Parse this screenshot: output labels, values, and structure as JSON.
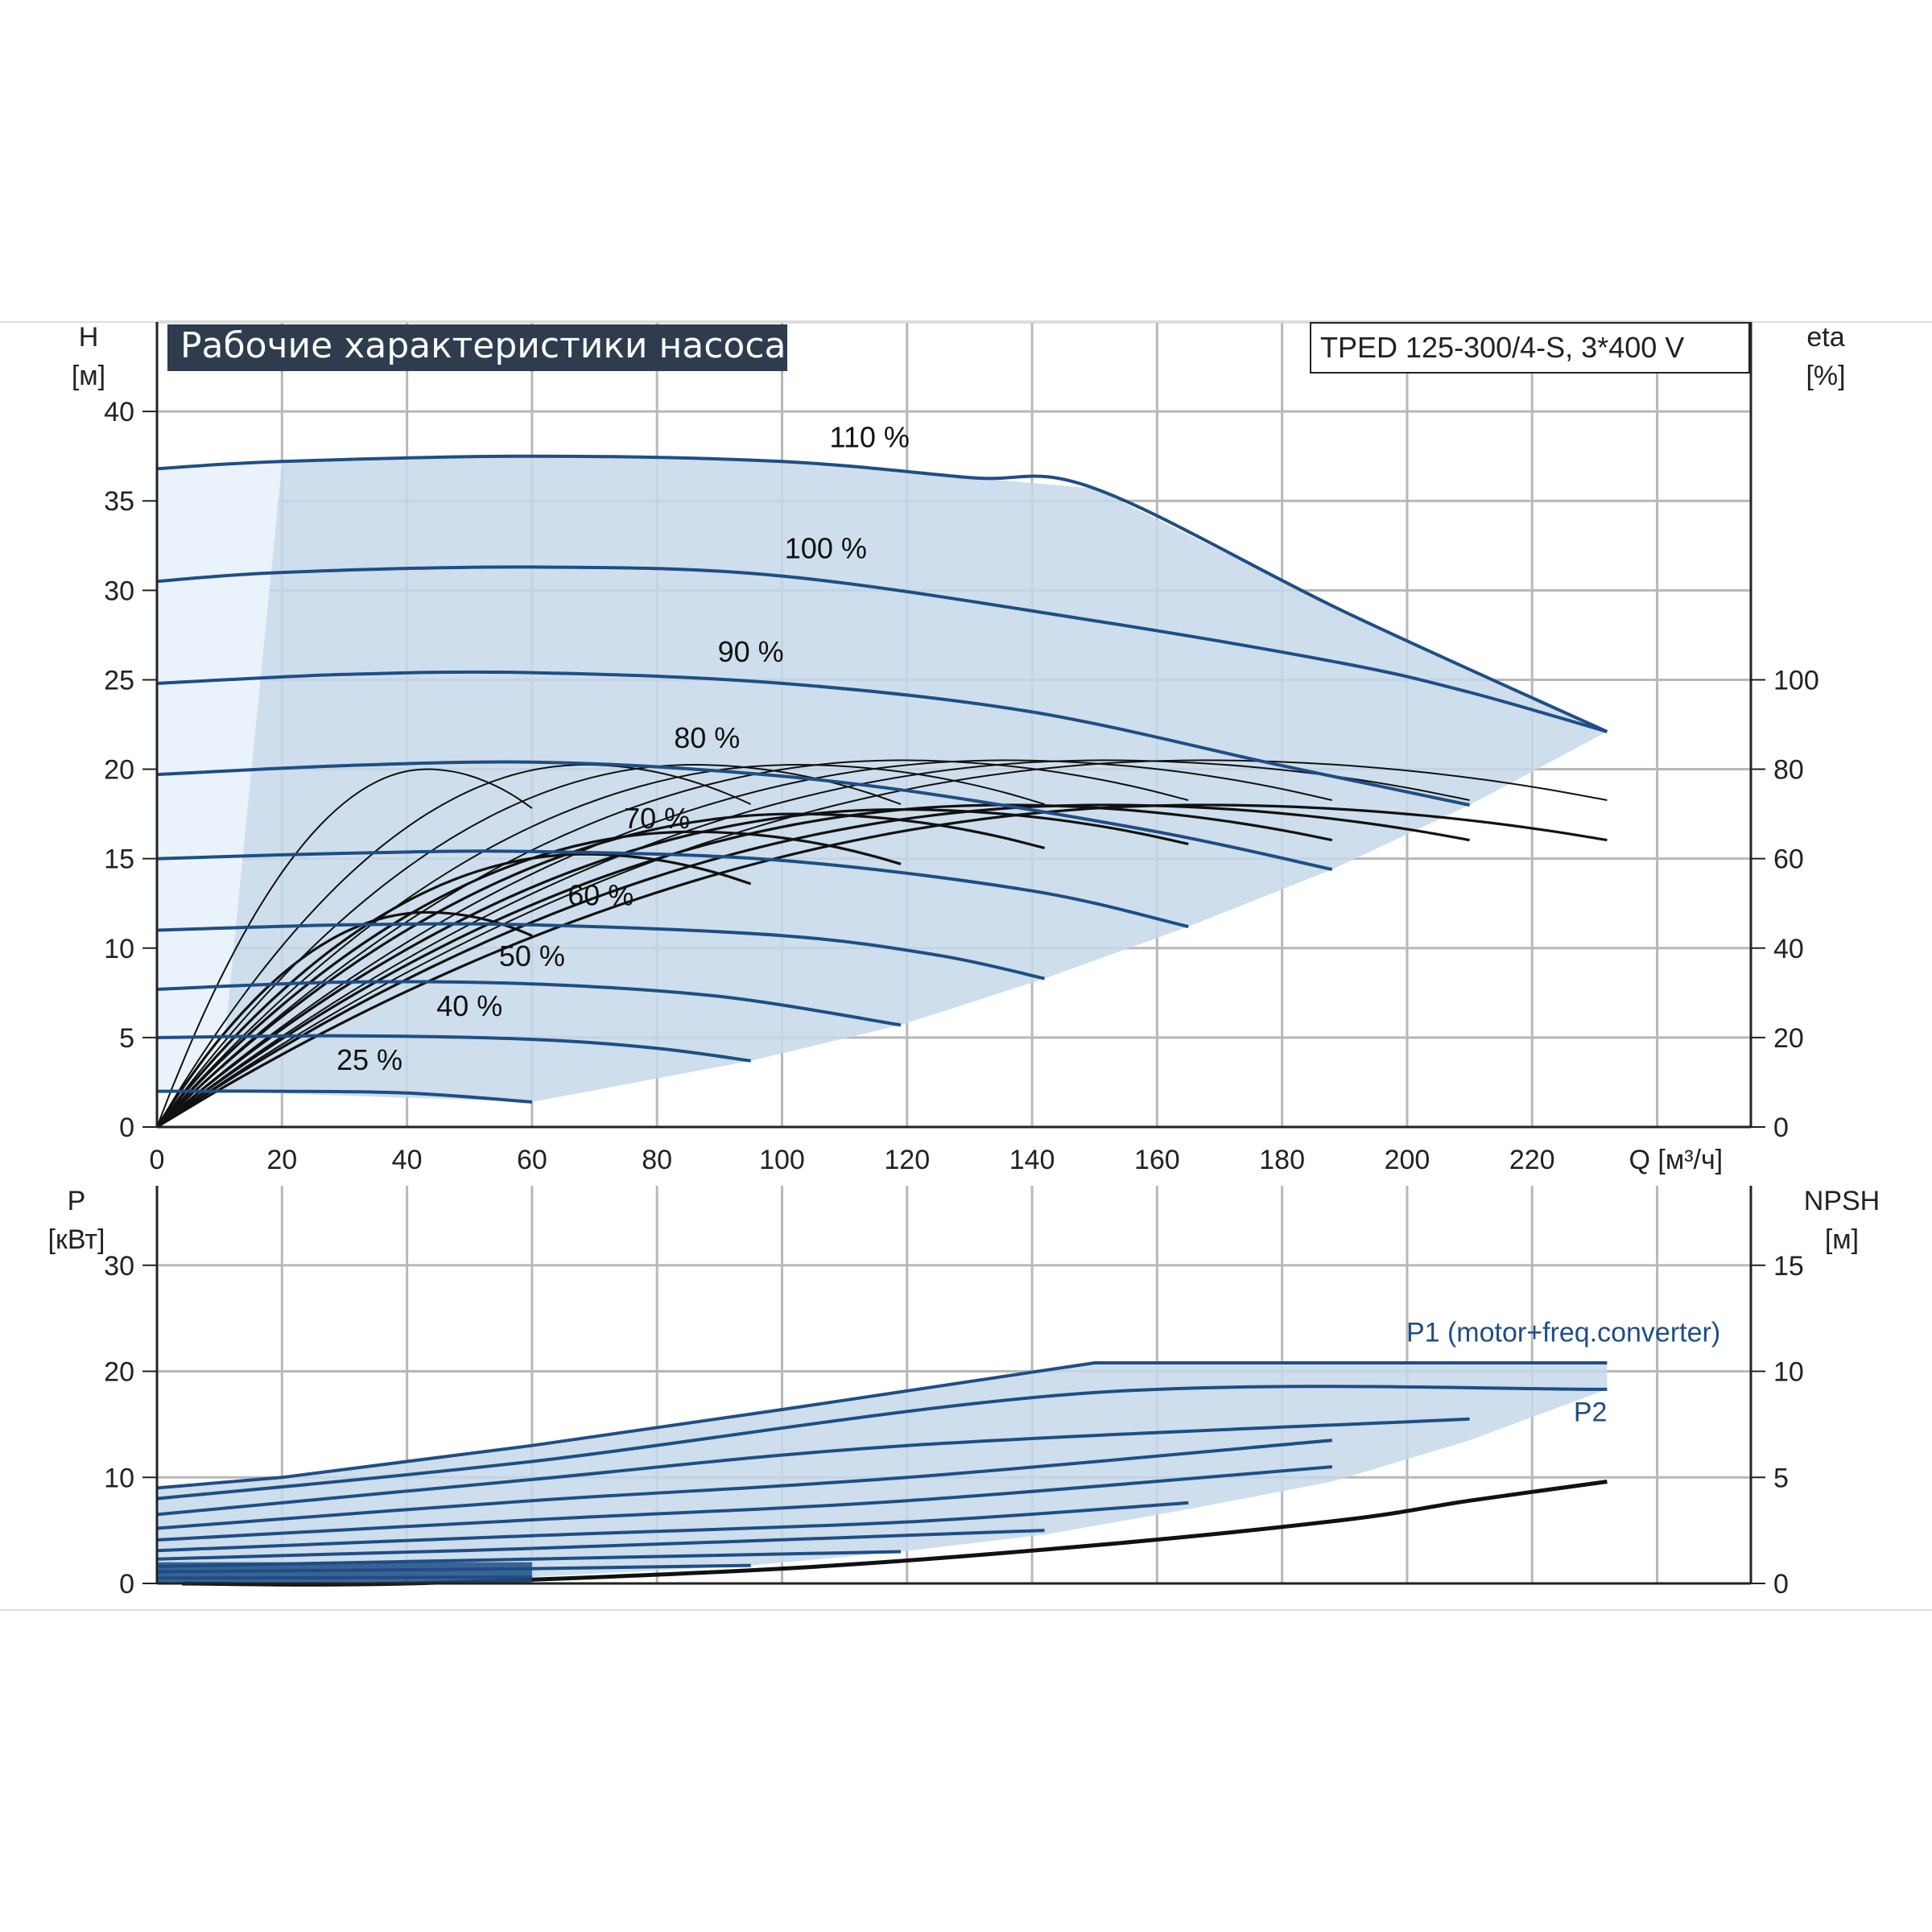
{
  "colors": {
    "curve_blue": "#1f4e85",
    "area_fill": "#c5d8ea",
    "area_light": "#eaf3fb",
    "grid": "#b8b8b8",
    "title_bg": "#2e3c4e",
    "title_fg": "#ffffff",
    "black": "#111111"
  },
  "title": "Рабочие характеристики насоса",
  "model": "TPED 125-300/4-S, 3*400 V",
  "chart_data": [
    {
      "type": "line",
      "name": "head",
      "y_label": [
        "H",
        "[м]"
      ],
      "y2_label": [
        "eta",
        "[%]"
      ],
      "x_label": "Q [м³/ч]",
      "xlim": [
        0,
        255
      ],
      "ylim": [
        0,
        40
      ],
      "y_ticks": [
        0,
        5,
        10,
        15,
        20,
        25,
        30,
        35,
        40
      ],
      "y_top_grid": 45,
      "x_ticks": [
        0,
        20,
        40,
        60,
        80,
        100,
        120,
        140,
        160,
        180,
        200,
        220
      ],
      "y2_ticks": [
        0,
        20,
        40,
        60,
        80,
        100
      ],
      "grid": true,
      "head_curves": [
        {
          "label": "110 %",
          "label_at": [
            114,
            38
          ],
          "points": [
            [
              0,
              36.8
            ],
            [
              20,
              37.2
            ],
            [
              60,
              37.5
            ],
            [
              100,
              37.2
            ],
            [
              130,
              36.3
            ],
            [
              150,
              35.7
            ],
            [
              190,
              28.8
            ],
            [
              232,
              22.1
            ]
          ]
        },
        {
          "label": "100 %",
          "label_at": [
            107,
            31.8
          ],
          "points": [
            [
              0,
              30.5
            ],
            [
              20,
              31
            ],
            [
              60,
              31.3
            ],
            [
              100,
              30.8
            ],
            [
              150,
              28.3
            ],
            [
              190,
              25.9
            ],
            [
              210,
              24.3
            ],
            [
              232,
              22.1
            ]
          ]
        },
        {
          "label": "90 %",
          "label_at": [
            95,
            26
          ],
          "points": [
            [
              0,
              24.8
            ],
            [
              30,
              25.3
            ],
            [
              60,
              25.4
            ],
            [
              100,
              24.8
            ],
            [
              140,
              23.2
            ],
            [
              180,
              20.2
            ],
            [
              210,
              18
            ]
          ]
        },
        {
          "label": "80 %",
          "label_at": [
            88,
            21.2
          ],
          "points": [
            [
              0,
              19.7
            ],
            [
              30,
              20.2
            ],
            [
              60,
              20.4
            ],
            [
              90,
              19.9
            ],
            [
              120,
              18.8
            ],
            [
              160,
              16.5
            ],
            [
              188,
              14.4
            ]
          ]
        },
        {
          "label": "70 %",
          "label_at": [
            80,
            16.7
          ],
          "points": [
            [
              0,
              15
            ],
            [
              30,
              15.3
            ],
            [
              60,
              15.4
            ],
            [
              100,
              14.9
            ],
            [
              140,
              13.2
            ],
            [
              165,
              11.2
            ]
          ]
        },
        {
          "label": "60 %",
          "label_at": [
            71,
            12.4
          ],
          "points": [
            [
              0,
              11
            ],
            [
              30,
              11.3
            ],
            [
              60,
              11.3
            ],
            [
              100,
              10.7
            ],
            [
              125,
              9.6
            ],
            [
              142,
              8.3
            ]
          ]
        },
        {
          "label": "50 %",
          "label_at": [
            60,
            9
          ],
          "points": [
            [
              0,
              7.7
            ],
            [
              30,
              8.1
            ],
            [
              60,
              8
            ],
            [
              90,
              7.3
            ],
            [
              119,
              5.7
            ]
          ]
        },
        {
          "label": "40 %",
          "label_at": [
            50,
            6.2
          ],
          "points": [
            [
              0,
              5
            ],
            [
              30,
              5.1
            ],
            [
              60,
              4.9
            ],
            [
              80,
              4.4
            ],
            [
              95,
              3.7
            ]
          ]
        },
        {
          "label": "25 %",
          "label_at": [
            34,
            3.2
          ],
          "points": [
            [
              0,
              2
            ],
            [
              20,
              2
            ],
            [
              40,
              1.9
            ],
            [
              60,
              1.4
            ]
          ]
        }
      ],
      "eta_curves_mid": [
        {
          "q_end": 60,
          "eta_max": 80
        },
        {
          "q_end": 95,
          "eta_max": 81
        },
        {
          "q_end": 119,
          "eta_max": 81
        },
        {
          "q_end": 142,
          "eta_max": 81
        },
        {
          "q_end": 165,
          "eta_max": 82
        },
        {
          "q_end": 188,
          "eta_max": 82
        },
        {
          "q_end": 210,
          "eta_max": 82
        },
        {
          "q_end": 232,
          "eta_max": 82
        }
      ],
      "eta_curves_low": [
        {
          "q_end": 60,
          "eta_max": 48
        },
        {
          "q_end": 95,
          "eta_max": 61
        },
        {
          "q_end": 119,
          "eta_max": 66
        },
        {
          "q_end": 142,
          "eta_max": 70
        },
        {
          "q_end": 165,
          "eta_max": 71
        },
        {
          "q_end": 188,
          "eta_max": 72
        },
        {
          "q_end": 210,
          "eta_max": 72
        },
        {
          "q_end": 232,
          "eta_max": 72
        }
      ]
    },
    {
      "type": "line",
      "name": "power",
      "y_label": [
        "P",
        "[кВт]"
      ],
      "y2_label": [
        "NPSH",
        "[м]"
      ],
      "xlim": [
        0,
        255
      ],
      "ylim": [
        0,
        37.5
      ],
      "y_ticks": [
        0,
        10,
        20,
        30
      ],
      "y2_ticks": [
        0,
        5,
        10,
        15
      ],
      "grid": true,
      "p1_label": "P1 (motor+freq.converter)",
      "p2_label": "P2",
      "p1_envelope": [
        [
          0,
          9
        ],
        [
          20,
          10
        ],
        [
          60,
          13
        ],
        [
          100,
          16.4
        ],
        [
          150,
          20.8
        ],
        [
          232,
          20.8
        ]
      ],
      "p2_curves": [
        {
          "points": [
            [
              0,
              8
            ],
            [
              60,
              11.5
            ],
            [
              150,
              18
            ],
            [
              232,
              18.3
            ]
          ]
        },
        {
          "points": [
            [
              0,
              6.5
            ],
            [
              60,
              9.8
            ],
            [
              120,
              13
            ],
            [
              210,
              15.5
            ]
          ]
        },
        {
          "points": [
            [
              0,
              5.2
            ],
            [
              60,
              7.8
            ],
            [
              120,
              10
            ],
            [
              188,
              13.5
            ]
          ]
        },
        {
          "points": [
            [
              0,
              4.1
            ],
            [
              60,
              6
            ],
            [
              120,
              7.8
            ],
            [
              188,
              11
            ]
          ]
        },
        {
          "points": [
            [
              0,
              3.1
            ],
            [
              60,
              4.5
            ],
            [
              120,
              5.8
            ],
            [
              165,
              7.6
            ]
          ]
        },
        {
          "points": [
            [
              0,
              2.3
            ],
            [
              60,
              3.3
            ],
            [
              142,
              5
            ]
          ]
        },
        {
          "points": [
            [
              0,
              1.6
            ],
            [
              60,
              2.3
            ],
            [
              119,
              3
            ]
          ]
        },
        {
          "points": [
            [
              0,
              1.1
            ],
            [
              60,
              1.4
            ],
            [
              95,
              1.7
            ]
          ]
        },
        {
          "points": [
            [
              0,
              0.5
            ],
            [
              60,
              0.6
            ]
          ]
        }
      ],
      "p1_curve": [
        [
          0,
          9
        ],
        [
          60,
          12.5
        ],
        [
          150,
          17.5
        ],
        [
          232,
          20.8
        ]
      ],
      "npsh": [
        [
          4,
          0
        ],
        [
          40,
          0
        ],
        [
          100,
          0.7
        ],
        [
          150,
          1.8
        ],
        [
          190,
          3
        ],
        [
          210,
          3.9
        ],
        [
          232,
          4.8
        ]
      ]
    }
  ]
}
